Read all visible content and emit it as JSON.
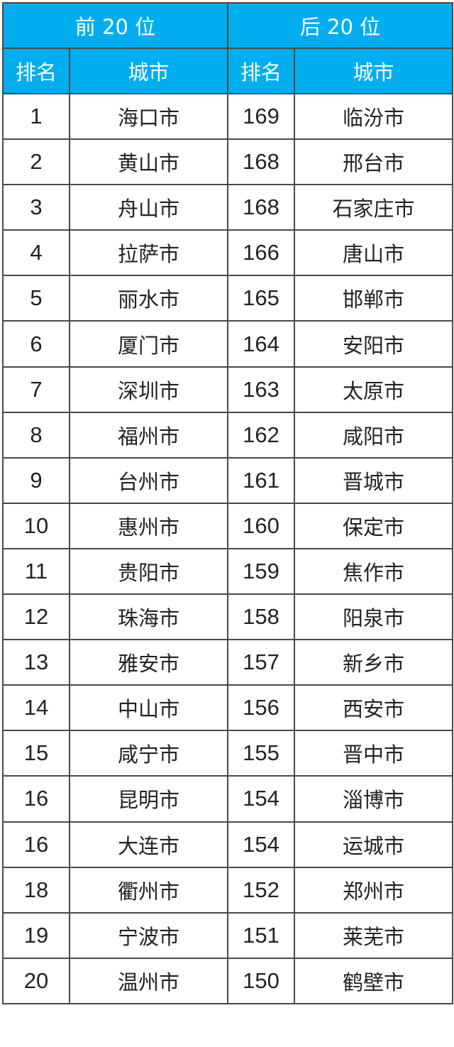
{
  "header": {
    "top_group": "前 20 位",
    "bottom_group": "后 20 位",
    "rank_label": "排名",
    "city_label": "城市"
  },
  "colors": {
    "header_bg": "#00AEEF",
    "header_text": "#FFFFFF",
    "border": "#4A4A4A"
  },
  "rows": [
    {
      "top_rank": "1",
      "top_city": "海口市",
      "bottom_rank": "169",
      "bottom_city": "临汾市"
    },
    {
      "top_rank": "2",
      "top_city": "黄山市",
      "bottom_rank": "168",
      "bottom_city": "邢台市"
    },
    {
      "top_rank": "3",
      "top_city": "舟山市",
      "bottom_rank": "168",
      "bottom_city": "石家庄市"
    },
    {
      "top_rank": "4",
      "top_city": "拉萨市",
      "bottom_rank": "166",
      "bottom_city": "唐山市"
    },
    {
      "top_rank": "5",
      "top_city": "丽水市",
      "bottom_rank": "165",
      "bottom_city": "邯郸市"
    },
    {
      "top_rank": "6",
      "top_city": "厦门市",
      "bottom_rank": "164",
      "bottom_city": "安阳市"
    },
    {
      "top_rank": "7",
      "top_city": "深圳市",
      "bottom_rank": "163",
      "bottom_city": "太原市"
    },
    {
      "top_rank": "8",
      "top_city": "福州市",
      "bottom_rank": "162",
      "bottom_city": "咸阳市"
    },
    {
      "top_rank": "9",
      "top_city": "台州市",
      "bottom_rank": "161",
      "bottom_city": "晋城市"
    },
    {
      "top_rank": "10",
      "top_city": "惠州市",
      "bottom_rank": "160",
      "bottom_city": "保定市"
    },
    {
      "top_rank": "11",
      "top_city": "贵阳市",
      "bottom_rank": "159",
      "bottom_city": "焦作市"
    },
    {
      "top_rank": "12",
      "top_city": "珠海市",
      "bottom_rank": "158",
      "bottom_city": "阳泉市"
    },
    {
      "top_rank": "13",
      "top_city": "雅安市",
      "bottom_rank": "157",
      "bottom_city": "新乡市"
    },
    {
      "top_rank": "14",
      "top_city": "中山市",
      "bottom_rank": "156",
      "bottom_city": "西安市"
    },
    {
      "top_rank": "15",
      "top_city": "咸宁市",
      "bottom_rank": "155",
      "bottom_city": "晋中市"
    },
    {
      "top_rank": "16",
      "top_city": "昆明市",
      "bottom_rank": "154",
      "bottom_city": "淄博市"
    },
    {
      "top_rank": "16",
      "top_city": "大连市",
      "bottom_rank": "154",
      "bottom_city": "运城市"
    },
    {
      "top_rank": "18",
      "top_city": "衢州市",
      "bottom_rank": "152",
      "bottom_city": "郑州市"
    },
    {
      "top_rank": "19",
      "top_city": "宁波市",
      "bottom_rank": "151",
      "bottom_city": "莱芜市"
    },
    {
      "top_rank": "20",
      "top_city": "温州市",
      "bottom_rank": "150",
      "bottom_city": "鹤壁市"
    }
  ]
}
